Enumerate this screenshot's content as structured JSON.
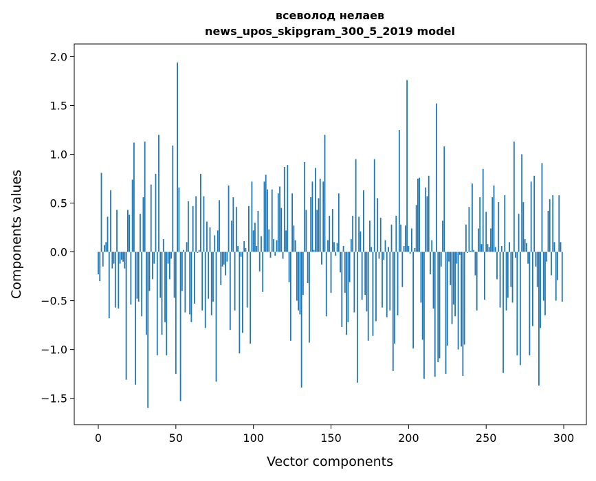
{
  "chart_data": {
    "type": "bar",
    "title": "всеволод нелаев",
    "subtitle": "news_upos_skipgram_300_5_2019 model",
    "xlabel": "Vector components",
    "ylabel": "Components values",
    "xlim": [
      -15.5,
      314.6
    ],
    "ylim": [
      -1.77,
      2.13
    ],
    "xticks": [
      0,
      50,
      100,
      150,
      200,
      250,
      300
    ],
    "yticks": [
      -1.5,
      -1.0,
      -0.5,
      0.0,
      0.5,
      1.0,
      1.5,
      2.0
    ],
    "xtick_labels": [
      "0",
      "50",
      "100",
      "150",
      "200",
      "250",
      "300"
    ],
    "ytick_labels": [
      "−1.5",
      "−1.0",
      "−0.5",
      "0.0",
      "0.5",
      "1.0",
      "1.5",
      "2.0"
    ],
    "grid": false,
    "bar_color": "#1f77b4",
    "values": [
      -0.23,
      -0.3,
      0.81,
      -0.15,
      0.07,
      0.1,
      0.36,
      -0.68,
      0.63,
      -0.17,
      -0.12,
      -0.57,
      0.43,
      -0.58,
      -0.12,
      -0.08,
      -0.1,
      -0.17,
      -1.31,
      0.43,
      0.38,
      -0.54,
      0.74,
      1.12,
      -1.36,
      -0.48,
      -0.51,
      0.39,
      -0.66,
      0.56,
      1.13,
      -0.85,
      -1.6,
      -0.4,
      0.69,
      -0.28,
      -0.12,
      0.8,
      -1.06,
      1.2,
      -0.47,
      -0.85,
      0.13,
      -0.72,
      -1.06,
      -0.12,
      -0.28,
      -0.07,
      1.09,
      -0.47,
      -1.25,
      1.94,
      0.66,
      -1.53,
      -0.4,
      0.02,
      -0.62,
      0.1,
      0.52,
      -0.64,
      -0.72,
      0.47,
      -0.53,
      0.57,
      -0.01,
      0.02,
      0.8,
      -0.6,
      0.57,
      -0.78,
      0.31,
      -0.48,
      0.25,
      -0.65,
      -0.51,
      0.17,
      -1.33,
      0.22,
      0.53,
      -0.34,
      -0.15,
      -0.13,
      -0.24,
      -0.1,
      0.68,
      -0.8,
      0.32,
      0.56,
      -0.6,
      0.46,
      0.06,
      -1.04,
      -0.05,
      -0.83,
      0.11,
      0.04,
      -0.57,
      0.47,
      -0.94,
      0.72,
      0.22,
      0.3,
      0.06,
      0.42,
      -0.2,
      0.16,
      -0.41,
      0.72,
      0.79,
      0.64,
      0.23,
      -0.06,
      0.64,
      0.13,
      -0.04,
      0.12,
      0.6,
      0.67,
      0.45,
      -0.07,
      0.87,
      0.22,
      0.89,
      -0.31,
      -0.91,
      0.6,
      0.27,
      0.12,
      -0.5,
      -0.6,
      -0.64,
      -1.39,
      -0.44,
      0.92,
      0.43,
      -0.32,
      -0.93,
      0.56,
      0.72,
      0.02,
      0.86,
      0.43,
      0.55,
      0.75,
      -0.13,
      0.72,
      1.2,
      -0.66,
      0.12,
      0.37,
      -0.42,
      0.44,
      0.1,
      -0.04,
      0.09,
      0.6,
      -0.21,
      -0.77,
      0.06,
      -0.42,
      -0.85,
      -0.72,
      -0.31,
      0.13,
      0.37,
      -0.62,
      0.95,
      -1.34,
      0.36,
      0.21,
      -0.49,
      0.63,
      -0.44,
      -0.61,
      -0.91,
      0.32,
      0.05,
      -0.86,
      0.95,
      -0.71,
      0.55,
      -0.07,
      0.35,
      -0.57,
      -0.08,
      0.12,
      -0.67,
      0.05,
      -0.6,
      0.28,
      -1.22,
      -0.94,
      0.37,
      -0.65,
      1.25,
      0.28,
      -0.36,
      0.06,
      0.27,
      1.76,
      0.06,
      -0.02,
      0.24,
      -0.99,
      0.04,
      0.48,
      0.75,
      0.76,
      -0.52,
      -0.9,
      -1.3,
      0.66,
      0.57,
      0.78,
      -0.23,
      0.12,
      -0.58,
      -1.28,
      1.52,
      -1.13,
      -1.09,
      -0.15,
      0.32,
      1.08,
      -1.25,
      -0.96,
      -0.1,
      -0.34,
      -0.74,
      -0.54,
      -0.66,
      -0.12,
      -1.0,
      -0.03,
      -0.97,
      -1.27,
      -0.95,
      0.28,
      -0.01,
      0.46,
      0.01,
      0.7,
      0.02,
      -0.24,
      -0.6,
      0.24,
      0.56,
      0.08,
      0.85,
      -0.49,
      0.41,
      0.08,
      0.05,
      0.24,
      0.56,
      0.68,
      0.05,
      -0.28,
      0.51,
      -0.57,
      0.06,
      -1.24,
      0.58,
      -0.6,
      -0.47,
      0.1,
      -0.36,
      -0.52,
      1.13,
      -0.06,
      -1.06,
      0.39,
      -1.16,
      1.0,
      0.51,
      0.13,
      0.09,
      -0.12,
      -1.06,
      0.72,
      -0.76,
      0.78,
      -0.15,
      -0.36,
      -1.37,
      -0.78,
      0.91,
      -0.5,
      -0.65,
      -0.1,
      0.42,
      0.54,
      -0.24,
      0.58,
      0.1,
      -0.5,
      -0.29,
      0.58,
      0.1,
      -0.51
    ]
  }
}
